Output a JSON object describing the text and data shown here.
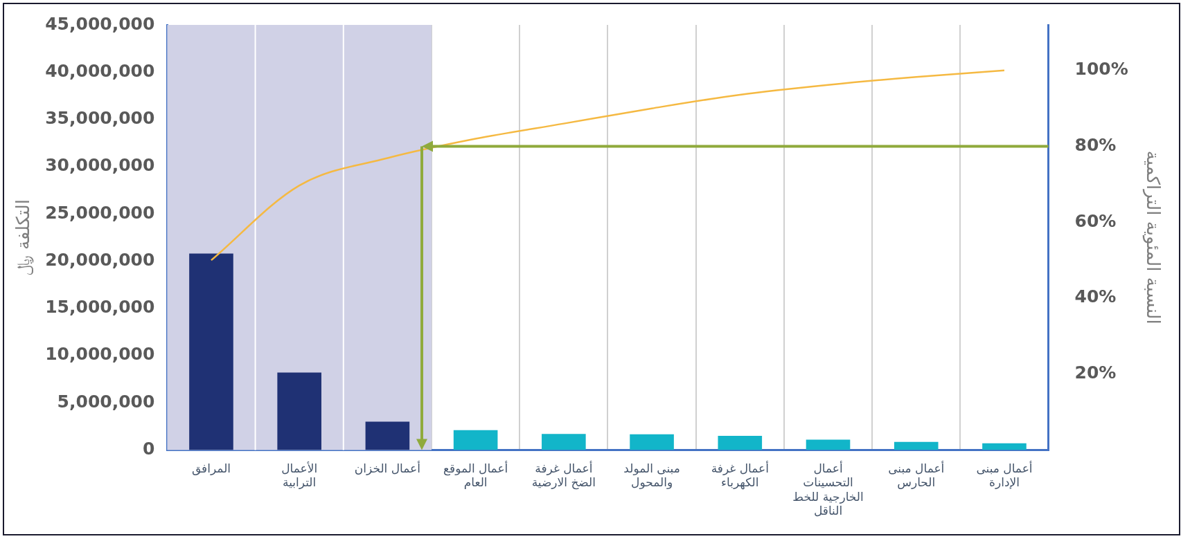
{
  "chart_data": {
    "type": "bar",
    "ylabel": "التكلفة ﷼",
    "y2label": "النسبة المئوية التراكمية",
    "categories": [
      "المرافق",
      "الأعمال الترابية",
      "أعمال الخزان",
      "أعمال الموقع العام",
      "أعمال غرفة الضخ الارضية",
      "مبنى المولد والمحول",
      "أعمال غرفة الكهرباء",
      "أعمال التحسينات الخارجية للخط الناقل",
      "أعمال مبنى الحارس",
      "أعمال مبنى الإدارة"
    ],
    "values": [
      20800000,
      8200000,
      3000000,
      2100000,
      1700000,
      1650000,
      1500000,
      1100000,
      850000,
      700000
    ],
    "colors": [
      "#1f3174",
      "#1f3174",
      "#1f3174",
      "#12b5c9",
      "#12b5c9",
      "#12b5c9",
      "#12b5c9",
      "#12b5c9",
      "#12b5c9",
      "#12b5c9"
    ],
    "series": [
      {
        "type": "line",
        "axis": "y2",
        "color": "#f5b942",
        "values": [
          50,
          69.7,
          76.9,
          82,
          86,
          90,
          93.6,
          96.2,
          98.3,
          100
        ]
      }
    ],
    "ylim": [
      0,
      45000000
    ],
    "yticks": [
      {
        "value": 0,
        "label": "0"
      },
      {
        "value": 5000000,
        "label": "5,000,000"
      },
      {
        "value": 10000000,
        "label": "10,000,000"
      },
      {
        "value": 15000000,
        "label": "15,000,000"
      },
      {
        "value": 20000000,
        "label": "20,000,000"
      },
      {
        "value": 25000000,
        "label": "25,000,000"
      },
      {
        "value": 30000000,
        "label": "30,000,000"
      },
      {
        "value": 35000000,
        "label": "35,000,000"
      },
      {
        "value": 40000000,
        "label": "40,000,000"
      },
      {
        "value": 45000000,
        "label": "45,000,000"
      }
    ],
    "y2lim": [
      0,
      112
    ],
    "y2ticks": [
      {
        "value": 20,
        "label": "20%"
      },
      {
        "value": 40,
        "label": "40%"
      },
      {
        "value": 60,
        "label": "60%"
      },
      {
        "value": 80,
        "label": "80%"
      },
      {
        "value": 100,
        "label": "100%"
      }
    ],
    "bands": [
      {
        "axis": "x",
        "from": "المرافق",
        "to": "أعمال الخزان",
        "color": "#d0d1e6"
      }
    ],
    "ref_lines": [
      {
        "axis": "y2",
        "value": 80,
        "color": "#8faa3c"
      }
    ],
    "grid": "x",
    "legend": false,
    "marker": "none"
  }
}
